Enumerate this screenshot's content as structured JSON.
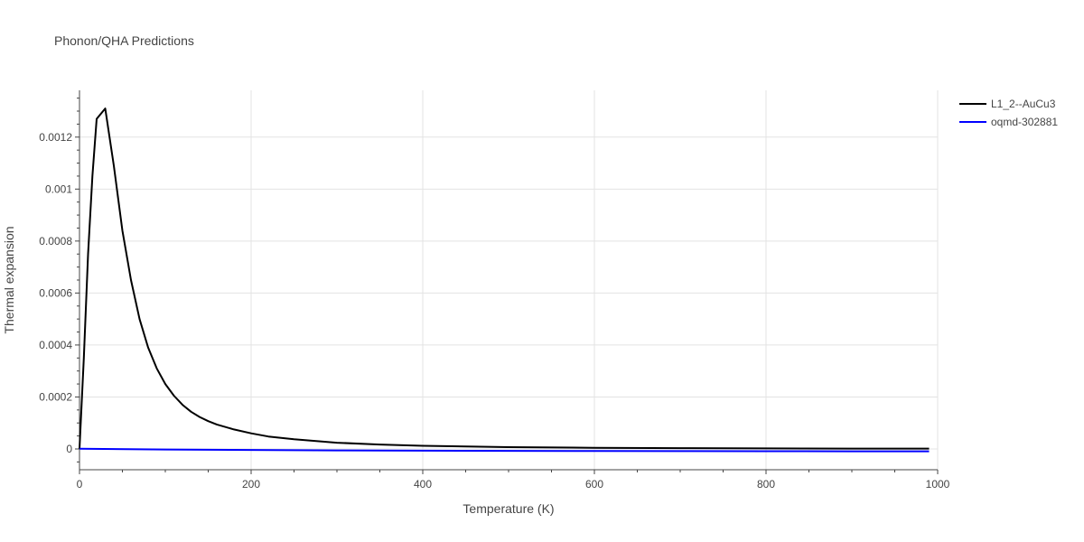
{
  "chart_data": {
    "type": "line",
    "title": "Phonon/QHA Predictions",
    "xlabel": "Temperature (K)",
    "ylabel": "Thermal expansion",
    "xlim": [
      0,
      1000
    ],
    "ylim": [
      -8e-05,
      0.00138
    ],
    "x_ticks": [
      0,
      200,
      400,
      600,
      800,
      1000
    ],
    "x_tick_labels": [
      "0",
      "200",
      "400",
      "600",
      "800",
      "1000"
    ],
    "y_ticks": [
      0,
      0.0002,
      0.0004,
      0.0006,
      0.0008,
      0.001,
      0.0012
    ],
    "y_tick_labels": [
      "0",
      "0.0002",
      "0.0004",
      "0.0006",
      "0.0008",
      "0.001",
      "0.0012"
    ],
    "grid": true,
    "legend_position": "top-right",
    "series": [
      {
        "name": "L1_2--AuCu3",
        "color": "#000000",
        "x": [
          0,
          5,
          10,
          15,
          20,
          30,
          40,
          50,
          60,
          70,
          80,
          90,
          100,
          110,
          120,
          130,
          140,
          150,
          160,
          180,
          200,
          220,
          250,
          300,
          350,
          400,
          500,
          600,
          700,
          800,
          900,
          990
        ],
        "y": [
          0,
          0.00035,
          0.00075,
          0.00105,
          0.00127,
          0.00131,
          0.00109,
          0.00084,
          0.00065,
          0.0005,
          0.00039,
          0.00031,
          0.00025,
          0.000205,
          0.00017,
          0.000143,
          0.000123,
          0.000107,
          9.4e-05,
          7.5e-05,
          6e-05,
          4.8e-05,
          3.7e-05,
          2.4e-05,
          1.7e-05,
          1.2e-05,
          7e-06,
          4.5e-06,
          3e-06,
          2e-06,
          1.5e-06,
          1.2e-06
        ]
      },
      {
        "name": "oqmd-302881",
        "color": "#0000ff",
        "x": [
          0,
          100,
          200,
          300,
          400,
          500,
          600,
          700,
          800,
          900,
          990
        ],
        "y": [
          1e-06,
          -2e-06,
          -4e-06,
          -5.5e-06,
          -6.5e-06,
          -7.5e-06,
          -8e-06,
          -8.5e-06,
          -8.8e-06,
          -9e-06,
          -9.2e-06
        ]
      }
    ]
  }
}
